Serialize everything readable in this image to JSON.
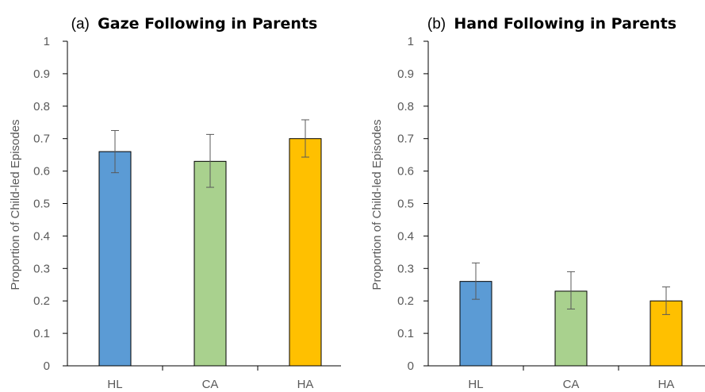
{
  "chart_data": [
    {
      "type": "bar",
      "title_prefix": "(a)",
      "title": "Gaze Following in Parents",
      "xlabel": "",
      "ylabel": "Proportion of Child-led Episodes",
      "ylim": [
        0,
        1
      ],
      "yticks": [
        "0",
        "0.1",
        "0.2",
        "0.3",
        "0.4",
        "0.5",
        "0.6",
        "0.7",
        "0.8",
        "0.9",
        "1"
      ],
      "categories": [
        "HL",
        "CA",
        "HA"
      ],
      "values": [
        0.66,
        0.63,
        0.7
      ],
      "error_low": [
        0.595,
        0.55,
        0.643
      ],
      "error_high": [
        0.725,
        0.713,
        0.758
      ],
      "colors": [
        "#5B9BD5",
        "#A9D18E",
        "#FFC000"
      ],
      "grid": false
    },
    {
      "type": "bar",
      "title_prefix": "(b)",
      "title": "Hand Following in Parents",
      "xlabel": "",
      "ylabel": "Proportion of Child-led Episodes",
      "ylim": [
        0,
        1
      ],
      "yticks": [
        "0",
        "0.1",
        "0.2",
        "0.3",
        "0.4",
        "0.5",
        "0.6",
        "0.7",
        "0.8",
        "0.9",
        "1"
      ],
      "categories": [
        "HL",
        "CA",
        "HA"
      ],
      "values": [
        0.26,
        0.23,
        0.2
      ],
      "error_low": [
        0.205,
        0.175,
        0.158
      ],
      "error_high": [
        0.317,
        0.29,
        0.243
      ],
      "colors": [
        "#5B9BD5",
        "#A9D18E",
        "#FFC000"
      ],
      "grid": false
    }
  ]
}
